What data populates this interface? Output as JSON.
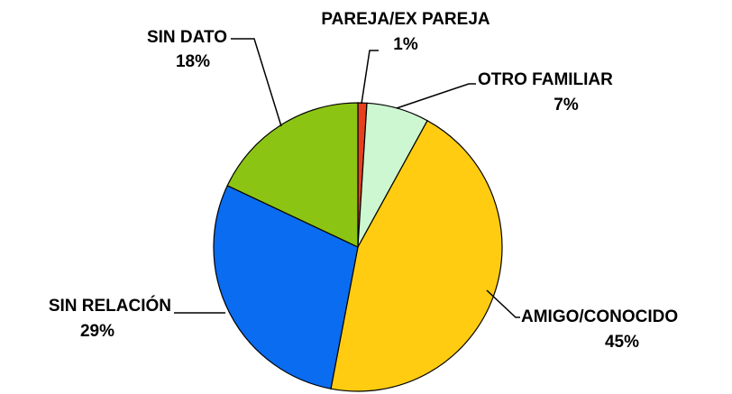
{
  "chart_data": {
    "type": "pie",
    "categories": [
      "PAREJA/EX PAREJA",
      "OTRO FAMILIAR",
      "AMIGO/CONOCIDO",
      "SIN RELACIÓN",
      "SIN DATO"
    ],
    "values": [
      1,
      7,
      45,
      29,
      18
    ],
    "value_labels": [
      "1%",
      "7%",
      "45%",
      "29%",
      "18%"
    ],
    "colors": [
      "#e8401c",
      "#ccf7d0",
      "#ffcc11",
      "#0a6cf0",
      "#8cc414"
    ]
  }
}
